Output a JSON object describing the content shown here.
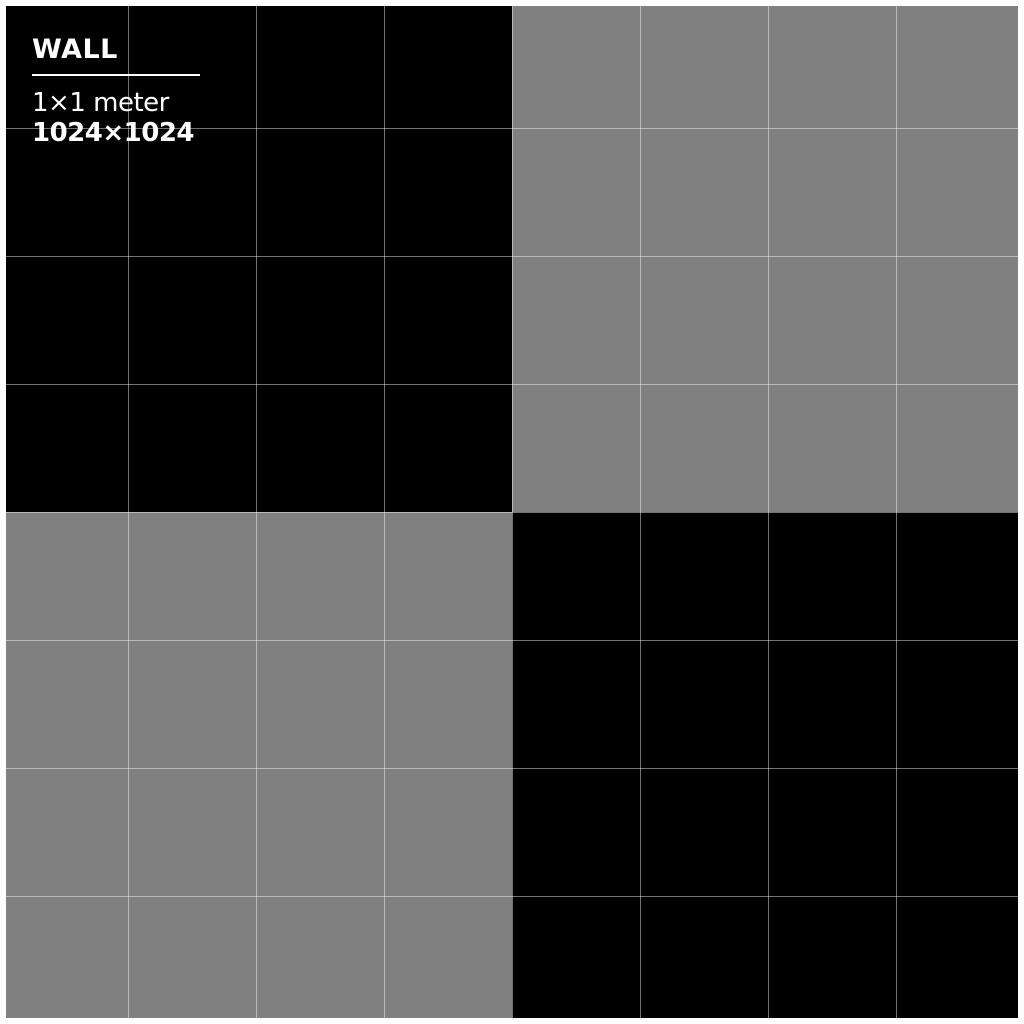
{
  "texture": {
    "label": {
      "title": "WALL",
      "size": "1×1 meter",
      "resolution": "1024×1024"
    },
    "colors": {
      "dark": "#000000",
      "light": "#808080",
      "separator": "#ffffff",
      "grid": "#ffffff"
    },
    "quadrants": [
      "dark",
      "light",
      "light",
      "dark"
    ]
  }
}
